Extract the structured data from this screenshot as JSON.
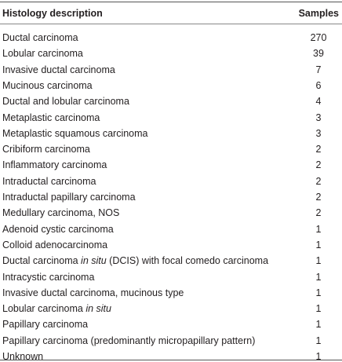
{
  "table": {
    "columns": [
      "Histology description",
      "Samples"
    ],
    "rows": [
      {
        "label": "Ductal carcinoma",
        "samples": 270
      },
      {
        "label": "Lobular carcinoma",
        "samples": 39
      },
      {
        "label": "Invasive ductal carcinoma",
        "samples": 7
      },
      {
        "label": "Mucinous carcinoma",
        "samples": 6
      },
      {
        "label": "Ductal and lobular carcinoma",
        "samples": 4
      },
      {
        "label": "Metaplastic carcinoma",
        "samples": 3
      },
      {
        "label": "Metaplastic squamous carcinoma",
        "samples": 3
      },
      {
        "label": "Cribiform carcinoma",
        "samples": 2
      },
      {
        "label": "Inflammatory carcinoma",
        "samples": 2
      },
      {
        "label": "Intraductal carcinoma",
        "samples": 2
      },
      {
        "label": "Intraductal papillary carcinoma",
        "samples": 2
      },
      {
        "label": "Medullary carcinoma, NOS",
        "samples": 2
      },
      {
        "label": "Adenoid cystic carcinoma",
        "samples": 1
      },
      {
        "label": "Colloid adenocarcinoma",
        "samples": 1
      },
      {
        "label": [
          {
            "text": "Ductal carcinoma "
          },
          {
            "text": "in situ",
            "italic": true
          },
          {
            "text": " (DCIS) with focal comedo carcinoma"
          }
        ],
        "samples": 1
      },
      {
        "label": "Intracystic carcinoma",
        "samples": 1
      },
      {
        "label": "Invasive ductal carcinoma, mucinous type",
        "samples": 1
      },
      {
        "label": [
          {
            "text": "Lobular carcinoma "
          },
          {
            "text": "in situ",
            "italic": true
          }
        ],
        "samples": 1
      },
      {
        "label": "Papillary carcinoma",
        "samples": 1
      },
      {
        "label": "Papillary carcinoma (predominantly micropapillary pattern)",
        "samples": 1
      },
      {
        "label": "Unknown",
        "samples": 1
      }
    ]
  }
}
